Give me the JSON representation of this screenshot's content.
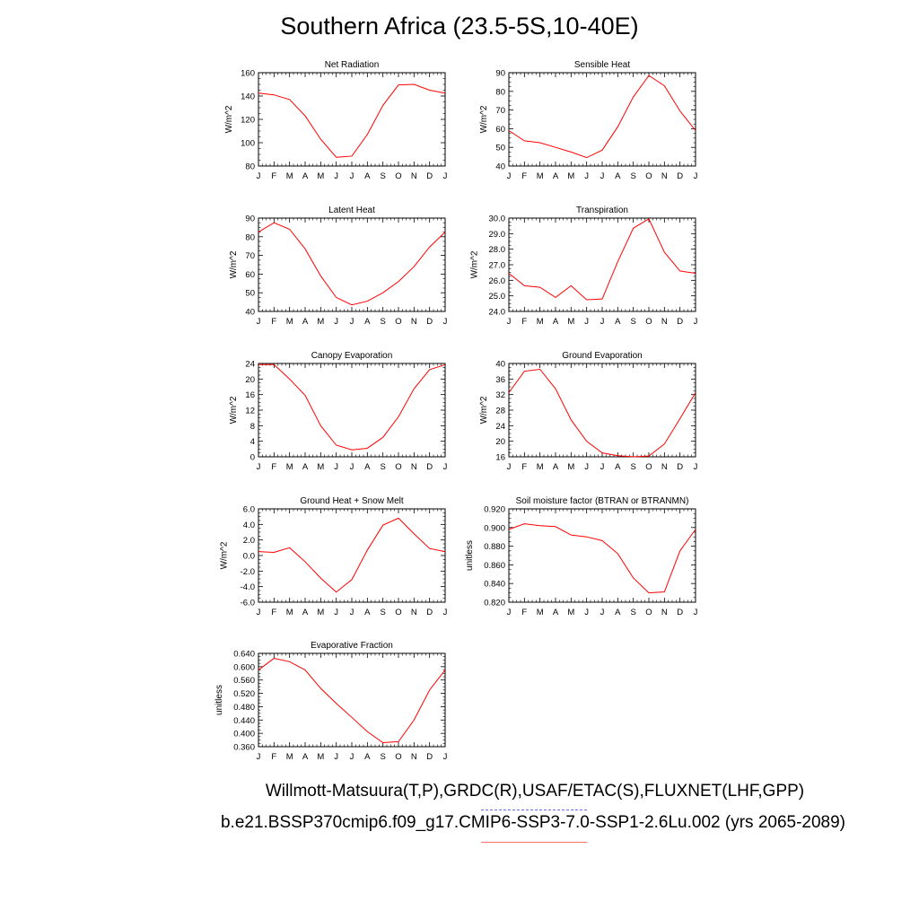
{
  "page_title": "Southern Africa (23.5-5S,10-40E)",
  "footer": {
    "line1": "Willmott-Matsuura(T,P),GRDC(R),USAF/ETAC(S),FLUXNET(LHF,GPP)",
    "line2": "b.e21.BSSP370cmip6.f09_g17.CMIP6-SSP3-7.0-SSP1-2.6Lu.002 (yrs 2065-2089)"
  },
  "colors": {
    "model_line": "#ff0000",
    "observation_line": "#6a6af0",
    "axis": "#000000"
  },
  "chart_data": [
    {
      "type": "line",
      "title": "Net Radiation",
      "ylabel": "W/m^2",
      "categories": [
        "J",
        "F",
        "M",
        "A",
        "M",
        "J",
        "J",
        "A",
        "S",
        "O",
        "N",
        "D",
        "J"
      ],
      "ylim": [
        80,
        160
      ],
      "yticks": [
        80,
        100,
        120,
        140,
        160
      ],
      "ytick_labels": [
        "80",
        "100",
        "120",
        "140",
        "160"
      ],
      "series": [
        {
          "values": [
            142.5,
            141,
            137,
            123,
            103,
            87.5,
            88.5,
            107,
            132,
            149.5,
            150,
            145,
            142.5
          ]
        }
      ]
    },
    {
      "type": "line",
      "title": "Sensible Heat",
      "ylabel": "W/m^2",
      "categories": [
        "J",
        "F",
        "M",
        "A",
        "M",
        "J",
        "J",
        "A",
        "S",
        "O",
        "N",
        "D",
        "J"
      ],
      "ylim": [
        40,
        90
      ],
      "yticks": [
        40,
        50,
        60,
        70,
        80,
        90
      ],
      "ytick_labels": [
        "40",
        "50",
        "60",
        "70",
        "80",
        "90"
      ],
      "series": [
        {
          "values": [
            59,
            53.5,
            52.5,
            50,
            47.5,
            44.5,
            48.5,
            61,
            77,
            88.5,
            83,
            69.5,
            59
          ]
        }
      ]
    },
    {
      "type": "line",
      "title": "Latent Heat",
      "ylabel": "W/m^2",
      "categories": [
        "J",
        "F",
        "M",
        "A",
        "M",
        "J",
        "J",
        "A",
        "S",
        "O",
        "N",
        "D",
        "J"
      ],
      "ylim": [
        40,
        90
      ],
      "yticks": [
        40,
        50,
        60,
        70,
        80,
        90
      ],
      "ytick_labels": [
        "40",
        "50",
        "60",
        "70",
        "80",
        "90"
      ],
      "series": [
        {
          "values": [
            82.5,
            87.5,
            84,
            73.5,
            59,
            47.5,
            43.5,
            45.5,
            50,
            56,
            64,
            74.5,
            82.5
          ]
        }
      ]
    },
    {
      "type": "line",
      "title": "Transpiration",
      "ylabel": "W/m^2",
      "categories": [
        "J",
        "F",
        "M",
        "A",
        "M",
        "J",
        "J",
        "A",
        "S",
        "O",
        "N",
        "D",
        "J"
      ],
      "ylim": [
        24,
        30
      ],
      "yticks": [
        24,
        25,
        26,
        27,
        28,
        29,
        30
      ],
      "ytick_labels": [
        "24.0",
        "25.0",
        "26.0",
        "27.0",
        "28.0",
        "29.0",
        "30.0"
      ],
      "series": [
        {
          "values": [
            26.45,
            25.65,
            25.55,
            24.9,
            25.65,
            24.75,
            24.8,
            27.2,
            29.35,
            29.95,
            27.8,
            26.6,
            26.45
          ]
        }
      ]
    },
    {
      "type": "line",
      "title": "Canopy Evaporation",
      "ylabel": "W/m^2",
      "categories": [
        "J",
        "F",
        "M",
        "A",
        "M",
        "J",
        "J",
        "A",
        "S",
        "O",
        "N",
        "D",
        "J"
      ],
      "ylim": [
        0,
        24
      ],
      "yticks": [
        0,
        4,
        8,
        12,
        16,
        20,
        24
      ],
      "ytick_labels": [
        "0",
        "4",
        "8",
        "12",
        "16",
        "20",
        "24"
      ],
      "series": [
        {
          "values": [
            23.7,
            23.7,
            20,
            15.8,
            8,
            3,
            1.8,
            2.2,
            5,
            10.3,
            17.5,
            22.4,
            23.7
          ]
        }
      ]
    },
    {
      "type": "line",
      "title": "Ground Evaporation",
      "ylabel": "W/m^2",
      "categories": [
        "J",
        "F",
        "M",
        "A",
        "M",
        "J",
        "J",
        "A",
        "S",
        "O",
        "N",
        "D",
        "J"
      ],
      "ylim": [
        16,
        40
      ],
      "yticks": [
        16,
        20,
        24,
        28,
        32,
        36,
        40
      ],
      "ytick_labels": [
        "16",
        "20",
        "24",
        "28",
        "32",
        "36",
        "40"
      ],
      "series": [
        {
          "values": [
            32.5,
            38,
            38.5,
            33.5,
            25.5,
            20,
            17,
            16.3,
            16,
            16.2,
            19.3,
            25.8,
            32.5
          ]
        }
      ]
    },
    {
      "type": "line",
      "title": "Ground Heat + Snow Melt",
      "ylabel": "W/m^2",
      "categories": [
        "J",
        "F",
        "M",
        "A",
        "M",
        "J",
        "J",
        "A",
        "S",
        "O",
        "N",
        "D",
        "J"
      ],
      "ylim": [
        -6,
        6
      ],
      "yticks": [
        -6,
        -4,
        -2,
        0,
        2,
        4,
        6
      ],
      "ytick_labels": [
        "-6.0",
        "-4.0",
        "-2.0",
        "0.0",
        "2.0",
        "4.0",
        "6.0"
      ],
      "series": [
        {
          "values": [
            0.5,
            0.4,
            1,
            -0.8,
            -2.9,
            -4.7,
            -3.1,
            0.7,
            3.9,
            4.8,
            2.8,
            0.9,
            0.5
          ]
        }
      ]
    },
    {
      "type": "line",
      "title": "Soil moisture factor (BTRAN or BTRANMN)",
      "ylabel": "unitless",
      "categories": [
        "J",
        "F",
        "M",
        "A",
        "M",
        "J",
        "J",
        "A",
        "S",
        "O",
        "N",
        "D",
        "J"
      ],
      "ylim": [
        0.82,
        0.92
      ],
      "yticks": [
        0.82,
        0.84,
        0.86,
        0.88,
        0.9,
        0.92
      ],
      "ytick_labels": [
        "0.820",
        "0.840",
        "0.860",
        "0.880",
        "0.900",
        "0.920"
      ],
      "series": [
        {
          "values": [
            0.898,
            0.904,
            0.902,
            0.901,
            0.892,
            0.89,
            0.886,
            0.872,
            0.846,
            0.83,
            0.831,
            0.875,
            0.898
          ]
        }
      ]
    },
    {
      "type": "line",
      "title": "Evaporative Fraction",
      "ylabel": "unitless",
      "categories": [
        "J",
        "F",
        "M",
        "A",
        "M",
        "J",
        "J",
        "A",
        "S",
        "O",
        "N",
        "D",
        "J"
      ],
      "ylim": [
        0.36,
        0.64
      ],
      "yticks": [
        0.36,
        0.4,
        0.44,
        0.48,
        0.52,
        0.56,
        0.6,
        0.64
      ],
      "ytick_labels": [
        "0.360",
        "0.400",
        "0.440",
        "0.480",
        "0.520",
        "0.560",
        "0.600",
        "0.640"
      ],
      "series": [
        {
          "values": [
            0.59,
            0.625,
            0.615,
            0.59,
            0.535,
            0.49,
            0.448,
            0.405,
            0.372,
            0.375,
            0.44,
            0.53,
            0.59
          ]
        }
      ]
    }
  ]
}
